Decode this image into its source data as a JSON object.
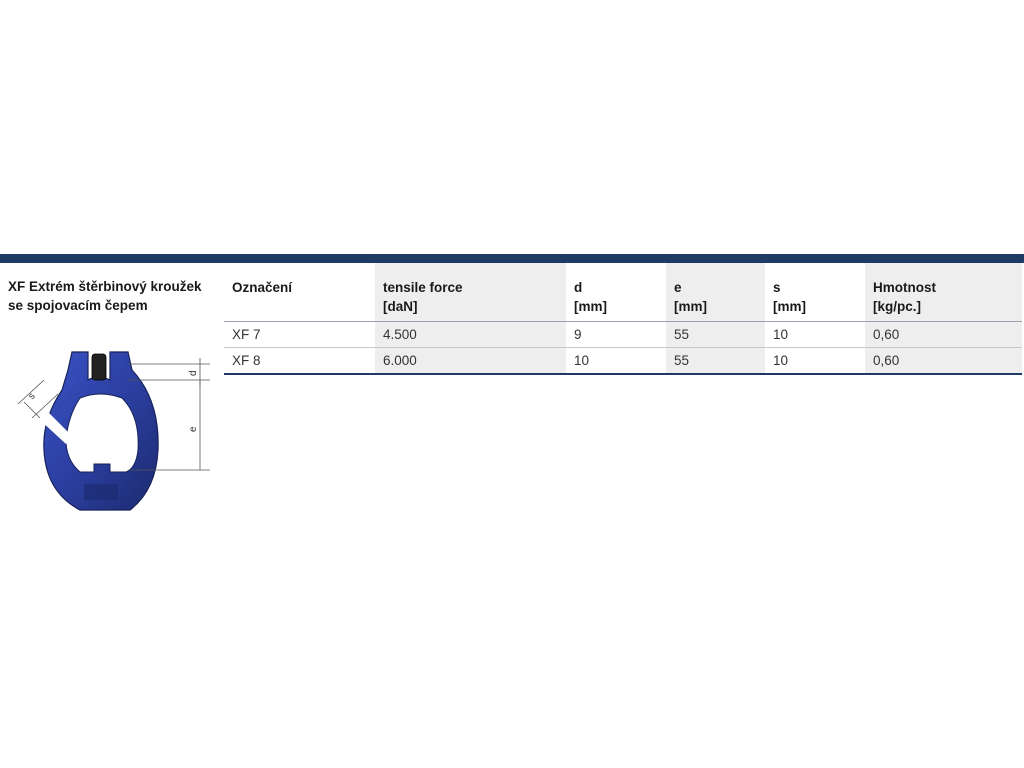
{
  "product": {
    "title_line1": "XF Extrém štěrbinový kroužek",
    "title_line2": "se spojovacím čepem",
    "image": {
      "icon": "coupling-link-diagram",
      "color": "#2a3d9c",
      "dimension_labels": {
        "d": "d",
        "e": "e",
        "s": "s"
      }
    }
  },
  "table": {
    "headers": [
      {
        "line1": "Označení",
        "line2": ""
      },
      {
        "line1": "tensile force",
        "line2": "[daN]"
      },
      {
        "line1": "d",
        "line2": "[mm]"
      },
      {
        "line1": "e",
        "line2": "[mm]"
      },
      {
        "line1": "s",
        "line2": "[mm]"
      },
      {
        "line1": "Hmotnost",
        "line2": "[kg/pc.]"
      }
    ],
    "rows": [
      [
        "XF 7",
        "4.500",
        "9",
        "55",
        "10",
        "0,60"
      ],
      [
        "XF 8",
        "6.000",
        "10",
        "55",
        "10",
        "0,60"
      ]
    ]
  },
  "colors": {
    "accent": "#1f3a63",
    "shade": "#eeeeee"
  }
}
